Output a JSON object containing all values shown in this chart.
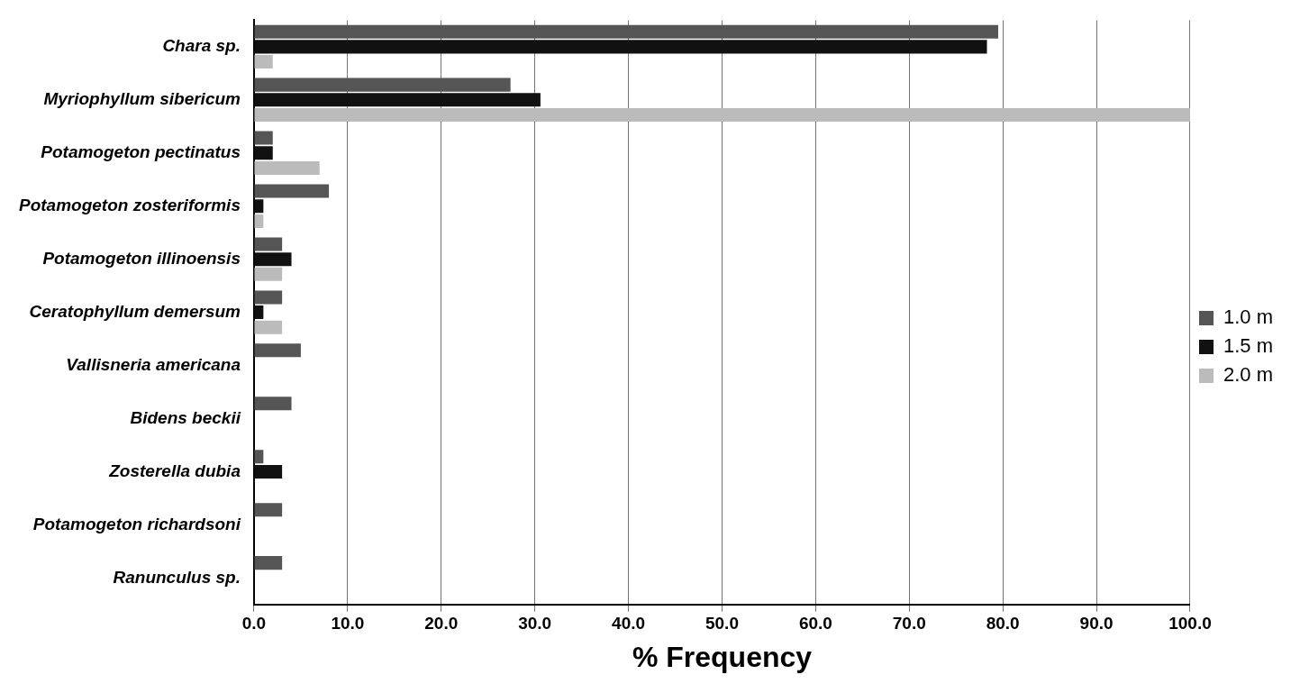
{
  "chart_data": {
    "type": "bar",
    "orientation": "horizontal",
    "xlabel": "% Frequency",
    "categories": [
      "Chara sp.",
      "Myriophyllum sibericum",
      "Potamogeton pectinatus",
      "Potamogeton zosteriformis",
      "Potamogeton illinoensis",
      "Ceratophyllum demersum",
      "Vallisneria americana",
      "Bidens beckii",
      "Zosterella dubia",
      "Potamogeton richardsoni",
      "Ranunculus sp."
    ],
    "series": [
      {
        "name": "1.0 m",
        "color": "#555555",
        "values": [
          79.5,
          27.4,
          2,
          8,
          3,
          3,
          5,
          4,
          1,
          3,
          3
        ]
      },
      {
        "name": "1.5 m",
        "color": "#111111",
        "values": [
          78.3,
          30.6,
          2,
          1,
          4,
          1,
          0,
          0,
          3,
          0,
          0
        ]
      },
      {
        "name": "2.0 m",
        "color": "#bbbbbb",
        "values": [
          2,
          100,
          7,
          1,
          3,
          3,
          0,
          0,
          0,
          0,
          0
        ]
      }
    ],
    "xlim": [
      0,
      100
    ],
    "xticks": [
      {
        "value": 0,
        "label": "0.0"
      },
      {
        "value": 10,
        "label": "10.0"
      },
      {
        "value": 20,
        "label": "20.0"
      },
      {
        "value": 30,
        "label": "30.0"
      },
      {
        "value": 40,
        "label": "40.0"
      },
      {
        "value": 50,
        "label": "50.0"
      },
      {
        "value": 60,
        "label": "60.0"
      },
      {
        "value": 70,
        "label": "70.0"
      },
      {
        "value": 80,
        "label": "80.0"
      },
      {
        "value": 90,
        "label": "90.0"
      },
      {
        "value": 100,
        "label": "100.0"
      }
    ],
    "grid": "x",
    "legend": "right"
  }
}
